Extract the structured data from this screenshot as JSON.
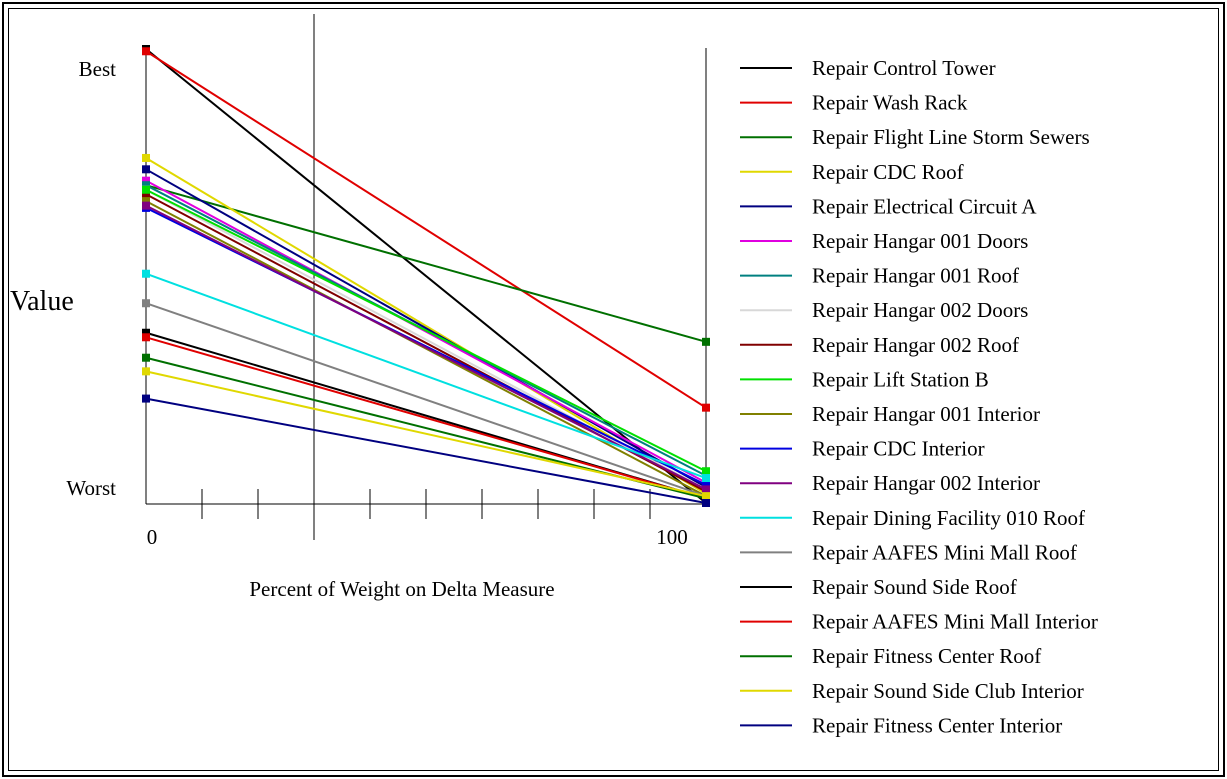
{
  "chart_data": {
    "type": "line",
    "x": [
      0,
      100
    ],
    "xlabel": "Percent of Weight on Delta Measure",
    "ylabel": "Value",
    "x_tick_labels": [
      "0",
      "100"
    ],
    "y_tick_labels": [
      "Best",
      "Worst"
    ],
    "y_scale": "unitless, Worst = 0, Best = 1",
    "xlim": [
      0,
      100
    ],
    "ylim": [
      0,
      1
    ],
    "reference_line_x": 30,
    "legend_placement": "right",
    "series": [
      {
        "name": "Repair Control Tower",
        "color": "#000000",
        "values": [
          1.0,
          0.0
        ]
      },
      {
        "name": "Repair Wash Rack",
        "color": "#e00000",
        "values": [
          0.995,
          0.21
        ]
      },
      {
        "name": "Repair Flight Line Storm Sewers",
        "color": "#007000",
        "values": [
          0.7,
          0.355
        ]
      },
      {
        "name": "Repair CDC Roof",
        "color": "#e0d800",
        "values": [
          0.76,
          0.02
        ]
      },
      {
        "name": "Repair Electrical Circuit A",
        "color": "#000080",
        "values": [
          0.735,
          0.035
        ]
      },
      {
        "name": "Repair Hangar 001 Doors",
        "color": "#e000e0",
        "values": [
          0.71,
          0.045
        ]
      },
      {
        "name": "Repair Hangar 001 Roof",
        "color": "#008080",
        "values": [
          0.7,
          0.06
        ]
      },
      {
        "name": "Repair Hangar 002 Doors",
        "color": "#d8d8d8",
        "values": [
          0.69,
          0.03
        ]
      },
      {
        "name": "Repair Hangar 002 Roof",
        "color": "#800000",
        "values": [
          0.68,
          0.025
        ]
      },
      {
        "name": "Repair Lift Station B",
        "color": "#00e000",
        "values": [
          0.69,
          0.07
        ]
      },
      {
        "name": "Repair Hangar 001 Interior",
        "color": "#808000",
        "values": [
          0.665,
          0.015
        ]
      },
      {
        "name": "Repair CDC Interior",
        "color": "#0000e0",
        "values": [
          0.65,
          0.04
        ]
      },
      {
        "name": "Repair Hangar 002 Interior",
        "color": "#800080",
        "values": [
          0.655,
          0.03
        ]
      },
      {
        "name": "Repair Dining Facility 010 Roof",
        "color": "#00e0e0",
        "values": [
          0.505,
          0.055
        ]
      },
      {
        "name": "Repair AAFES Mini Mall Roof",
        "color": "#808080",
        "values": [
          0.44,
          0.015
        ]
      },
      {
        "name": "Repair Sound Side Roof",
        "color": "#000000",
        "values": [
          0.375,
          0.01
        ]
      },
      {
        "name": "Repair AAFES Mini Mall Interior",
        "color": "#e00000",
        "values": [
          0.365,
          0.01
        ]
      },
      {
        "name": "Repair Fitness Center Roof",
        "color": "#007000",
        "values": [
          0.32,
          0.01
        ]
      },
      {
        "name": "Repair Sound Side Club Interior",
        "color": "#e0d800",
        "values": [
          0.29,
          0.015
        ]
      },
      {
        "name": "Repair Fitness Center Interior",
        "color": "#000080",
        "values": [
          0.23,
          0.0
        ]
      }
    ]
  }
}
